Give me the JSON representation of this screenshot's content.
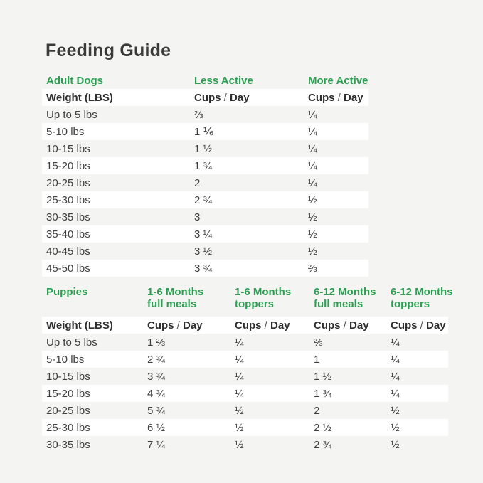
{
  "page": {
    "title": "Feeding Guide",
    "background_color": "#f4f4f2",
    "stripe_color": "#ffffff",
    "accent_green": "#2b9e52",
    "text_color": "#3f3f3f"
  },
  "labels": {
    "weight_header": "Weight (LBS)",
    "cups": "Cups",
    "slash": "/",
    "day": "Day"
  },
  "adult_table": {
    "section_title": "Adult Dogs",
    "col_less_active": "Less Active",
    "col_more_active": "More Active",
    "rows": [
      {
        "weight": "Up to 5 lbs",
        "less_active": "⅔",
        "more_active": "¼"
      },
      {
        "weight": "5-10 lbs",
        "less_active": "1 ⅙",
        "more_active": "¼"
      },
      {
        "weight": "10-15 lbs",
        "less_active": "1 ½",
        "more_active": "¼"
      },
      {
        "weight": "15-20 lbs",
        "less_active": "1 ¾",
        "more_active": "¼"
      },
      {
        "weight": "20-25 lbs",
        "less_active": "2",
        "more_active": "¼"
      },
      {
        "weight": "25-30 lbs",
        "less_active": "2 ¾",
        "more_active": "½"
      },
      {
        "weight": "30-35 lbs",
        "less_active": "3",
        "more_active": "½"
      },
      {
        "weight": "35-40 lbs",
        "less_active": "3 ¼",
        "more_active": "½"
      },
      {
        "weight": "40-45 lbs",
        "less_active": "3 ½",
        "more_active": "½"
      },
      {
        "weight": "45-50 lbs",
        "less_active": "3 ¾",
        "more_active": "⅔"
      }
    ]
  },
  "puppy_table": {
    "section_title": "Puppies",
    "col1_line1": "1-6 Months",
    "col1_line2": "full meals",
    "col2_line1": "1-6 Months",
    "col2_line2": "toppers",
    "col3_line1": "6-12 Months",
    "col3_line2": "full meals",
    "col4_line1": "6-12 Months",
    "col4_line2": "toppers",
    "rows": [
      {
        "weight": "Up to 5 lbs",
        "full_1_6": "1 ⅔",
        "toppers_1_6": "¼",
        "full_6_12": "⅔",
        "toppers_6_12": "¼"
      },
      {
        "weight": "5-10 lbs",
        "full_1_6": "2 ¾",
        "toppers_1_6": "¼",
        "full_6_12": "1",
        "toppers_6_12": "¼"
      },
      {
        "weight": "10-15 lbs",
        "full_1_6": "3 ¾",
        "toppers_1_6": "¼",
        "full_6_12": "1 ½",
        "toppers_6_12": "¼"
      },
      {
        "weight": "15-20 lbs",
        "full_1_6": "4 ¾",
        "toppers_1_6": "¼",
        "full_6_12": "1 ¾",
        "toppers_6_12": "¼"
      },
      {
        "weight": "20-25 lbs",
        "full_1_6": "5 ¾",
        "toppers_1_6": "½",
        "full_6_12": "2",
        "toppers_6_12": "½"
      },
      {
        "weight": "25-30 lbs",
        "full_1_6": "6 ½",
        "toppers_1_6": "½",
        "full_6_12": "2 ½",
        "toppers_6_12": "½"
      },
      {
        "weight": "30-35 lbs",
        "full_1_6": "7 ¼",
        "toppers_1_6": "½",
        "full_6_12": "2 ¾",
        "toppers_6_12": "½"
      }
    ]
  },
  "chart_data": [
    {
      "type": "table",
      "title": "Adult Dogs",
      "columns": [
        "Weight (LBS)",
        "Less Active Cups / Day",
        "More Active Cups / Day"
      ],
      "rows": [
        [
          "Up to 5 lbs",
          "2/3",
          "1/4"
        ],
        [
          "5-10 lbs",
          "1 1/6",
          "1/4"
        ],
        [
          "10-15 lbs",
          "1 1/2",
          "1/4"
        ],
        [
          "15-20 lbs",
          "1 3/4",
          "1/4"
        ],
        [
          "20-25 lbs",
          "2",
          "1/4"
        ],
        [
          "25-30 lbs",
          "2 3/4",
          "1/2"
        ],
        [
          "30-35 lbs",
          "3",
          "1/2"
        ],
        [
          "35-40 lbs",
          "3 1/4",
          "1/2"
        ],
        [
          "40-45 lbs",
          "3 1/2",
          "1/2"
        ],
        [
          "45-50 lbs",
          "3 3/4",
          "2/3"
        ]
      ]
    },
    {
      "type": "table",
      "title": "Puppies",
      "columns": [
        "Weight (LBS)",
        "1-6 Months full meals Cups / Day",
        "1-6 Months toppers Cups / Day",
        "6-12 Months full meals Cups / Day",
        "6-12 Months toppers Cups / Day"
      ],
      "rows": [
        [
          "Up to 5 lbs",
          "1 2/3",
          "1/4",
          "2/3",
          "1/4"
        ],
        [
          "5-10 lbs",
          "2 3/4",
          "1/4",
          "1",
          "1/4"
        ],
        [
          "10-15 lbs",
          "3 3/4",
          "1/4",
          "1 1/2",
          "1/4"
        ],
        [
          "15-20 lbs",
          "4 3/4",
          "1/4",
          "1 3/4",
          "1/4"
        ],
        [
          "20-25 lbs",
          "5 3/4",
          "1/2",
          "2",
          "1/2"
        ],
        [
          "25-30 lbs",
          "6 1/2",
          "1/2",
          "2 1/2",
          "1/2"
        ],
        [
          "30-35 lbs",
          "7 1/4",
          "1/2",
          "2 3/4",
          "1/2"
        ]
      ]
    }
  ]
}
